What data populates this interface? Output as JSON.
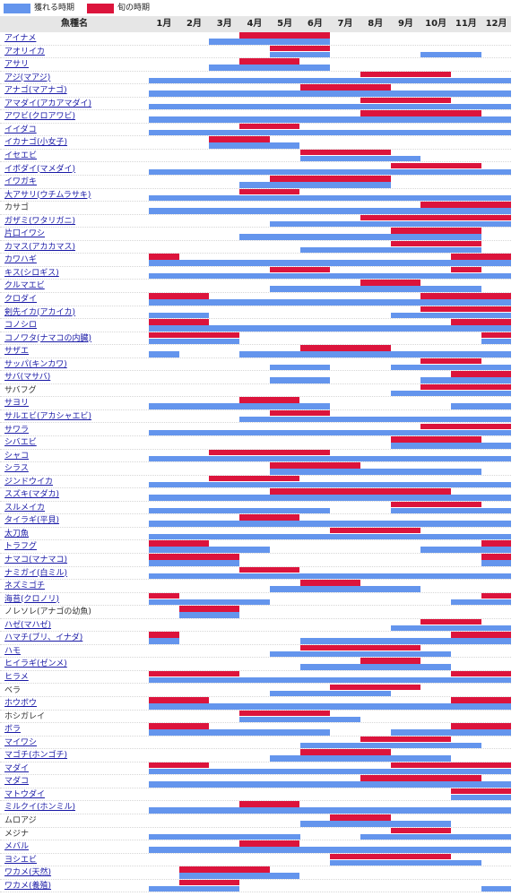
{
  "legend": {
    "catch_label": "獲れる時期",
    "season_label": "旬の時期",
    "catch_color": "#6495ED",
    "season_color": "#DC143C"
  },
  "header": {
    "fish_col": "魚種名",
    "months": [
      "1月",
      "2月",
      "3月",
      "4月",
      "5月",
      "6月",
      "7月",
      "8月",
      "9月",
      "10月",
      "11月",
      "12月"
    ]
  },
  "chart_data": {
    "type": "table",
    "description_note": "",
    "rows": [
      {
        "name": "アイナメ",
        "link": true,
        "season": [
          [
            4,
            6
          ]
        ],
        "catch": [
          [
            3,
            6
          ]
        ]
      },
      {
        "name": "アオリイカ",
        "link": true,
        "season": [
          [
            5,
            6
          ]
        ],
        "catch": [
          [
            5,
            6
          ],
          [
            10,
            11
          ]
        ]
      },
      {
        "name": "アサリ",
        "link": true,
        "season": [
          [
            4,
            5
          ]
        ],
        "catch": [
          [
            3,
            6
          ]
        ]
      },
      {
        "name": "アジ(マアジ)",
        "link": true,
        "season": [
          [
            8,
            10
          ]
        ],
        "catch": [
          [
            1,
            12
          ]
        ]
      },
      {
        "name": "アナゴ(マアナゴ)",
        "link": true,
        "season": [
          [
            6,
            8
          ]
        ],
        "catch": [
          [
            1,
            12
          ]
        ]
      },
      {
        "name": "アマダイ(アカアマダイ)",
        "link": true,
        "season": [
          [
            8,
            10
          ]
        ],
        "catch": [
          [
            1,
            12
          ]
        ]
      },
      {
        "name": "アワビ(クロアワビ)",
        "link": true,
        "season": [
          [
            8,
            11
          ]
        ],
        "catch": [
          [
            1,
            12
          ]
        ]
      },
      {
        "name": "イイダコ",
        "link": true,
        "season": [
          [
            4,
            5
          ]
        ],
        "catch": [
          [
            1,
            12
          ]
        ]
      },
      {
        "name": "イカナゴ(小女子)",
        "link": true,
        "season": [
          [
            3,
            4
          ]
        ],
        "catch": [
          [
            3,
            5
          ]
        ]
      },
      {
        "name": "イセエビ",
        "link": true,
        "season": [
          [
            6,
            8
          ]
        ],
        "catch": [
          [
            6,
            9
          ]
        ]
      },
      {
        "name": "イボダイ(マメダイ)",
        "link": true,
        "season": [
          [
            9,
            11
          ]
        ],
        "catch": [
          [
            1,
            12
          ]
        ]
      },
      {
        "name": "イワガキ",
        "link": true,
        "season": [
          [
            5,
            8
          ]
        ],
        "catch": [
          [
            4,
            8
          ]
        ]
      },
      {
        "name": "大アサリ(ウチムラサキ)",
        "link": true,
        "season": [
          [
            4,
            5
          ]
        ],
        "catch": [
          [
            1,
            12
          ]
        ]
      },
      {
        "name": "カサゴ",
        "link": false,
        "season": [
          [
            10,
            12
          ]
        ],
        "catch": [
          [
            1,
            12
          ]
        ]
      },
      {
        "name": "ガザミ(ワタリガニ)",
        "link": true,
        "season": [
          [
            8,
            12
          ]
        ],
        "catch": [
          [
            5,
            12
          ]
        ]
      },
      {
        "name": "片口イワシ",
        "link": true,
        "season": [
          [
            9,
            11
          ]
        ],
        "catch": [
          [
            4,
            11
          ]
        ]
      },
      {
        "name": "カマス(アカカマス)",
        "link": true,
        "season": [
          [
            9,
            11
          ]
        ],
        "catch": [
          [
            6,
            11
          ]
        ]
      },
      {
        "name": "カワハギ",
        "link": true,
        "season": [
          [
            1,
            1
          ],
          [
            11,
            12
          ]
        ],
        "catch": [
          [
            1,
            12
          ]
        ]
      },
      {
        "name": "キス(シロギス)",
        "link": true,
        "season": [
          [
            5,
            6
          ],
          [
            11,
            11
          ]
        ],
        "catch": [
          [
            1,
            12
          ]
        ]
      },
      {
        "name": "クルマエビ",
        "link": true,
        "season": [
          [
            8,
            9
          ]
        ],
        "catch": [
          [
            5,
            11
          ]
        ]
      },
      {
        "name": "クロダイ",
        "link": true,
        "season": [
          [
            1,
            2
          ],
          [
            10,
            12
          ]
        ],
        "catch": [
          [
            1,
            12
          ]
        ]
      },
      {
        "name": "剣先イカ(アカイカ)",
        "link": true,
        "season": [
          [
            10,
            12
          ]
        ],
        "catch": [
          [
            1,
            2
          ],
          [
            9,
            12
          ]
        ]
      },
      {
        "name": "コノシロ",
        "link": true,
        "season": [
          [
            1,
            2
          ],
          [
            11,
            12
          ]
        ],
        "catch": [
          [
            1,
            12
          ]
        ]
      },
      {
        "name": "コノワタ(ナマコの内臓)",
        "link": true,
        "season": [
          [
            1,
            3
          ],
          [
            12,
            12
          ]
        ],
        "catch": [
          [
            1,
            3
          ],
          [
            12,
            12
          ]
        ]
      },
      {
        "name": "サザエ",
        "link": true,
        "season": [
          [
            6,
            8
          ]
        ],
        "catch": [
          [
            1,
            1
          ],
          [
            4,
            12
          ]
        ]
      },
      {
        "name": "サッパ(キンカワ)",
        "link": true,
        "season": [
          [
            10,
            11
          ]
        ],
        "catch": [
          [
            5,
            6
          ],
          [
            9,
            12
          ]
        ]
      },
      {
        "name": "サバ(マサバ)",
        "link": true,
        "season": [
          [
            11,
            12
          ]
        ],
        "catch": [
          [
            5,
            6
          ],
          [
            10,
            12
          ]
        ]
      },
      {
        "name": "サバフグ",
        "link": false,
        "season": [
          [
            10,
            12
          ]
        ],
        "catch": [
          [
            9,
            12
          ]
        ]
      },
      {
        "name": "サヨリ",
        "link": true,
        "season": [
          [
            4,
            5
          ]
        ],
        "catch": [
          [
            1,
            6
          ],
          [
            11,
            12
          ]
        ]
      },
      {
        "name": "サルエビ(アカシャエビ)",
        "link": true,
        "season": [
          [
            5,
            6
          ]
        ],
        "catch": [
          [
            4,
            12
          ]
        ]
      },
      {
        "name": "サワラ",
        "link": true,
        "season": [
          [
            10,
            12
          ]
        ],
        "catch": [
          [
            1,
            12
          ]
        ]
      },
      {
        "name": "シバエビ",
        "link": true,
        "season": [
          [
            9,
            11
          ]
        ],
        "catch": [
          [
            9,
            12
          ]
        ]
      },
      {
        "name": "シャコ",
        "link": true,
        "season": [
          [
            3,
            6
          ]
        ],
        "catch": [
          [
            1,
            12
          ]
        ]
      },
      {
        "name": "シラス",
        "link": true,
        "season": [
          [
            5,
            7
          ]
        ],
        "catch": [
          [
            5,
            11
          ]
        ]
      },
      {
        "name": "ジンドウイカ",
        "link": true,
        "season": [
          [
            3,
            5
          ]
        ],
        "catch": [
          [
            1,
            12
          ]
        ]
      },
      {
        "name": "スズキ(マダカ)",
        "link": true,
        "season": [
          [
            5,
            10
          ]
        ],
        "catch": [
          [
            1,
            12
          ]
        ]
      },
      {
        "name": "スルメイカ",
        "link": true,
        "season": [
          [
            9,
            11
          ]
        ],
        "catch": [
          [
            1,
            6
          ],
          [
            9,
            12
          ]
        ]
      },
      {
        "name": "タイラギ(平貝)",
        "link": true,
        "season": [
          [
            4,
            5
          ]
        ],
        "catch": [
          [
            1,
            12
          ]
        ]
      },
      {
        "name": "太刀魚",
        "link": true,
        "season": [
          [
            7,
            9
          ]
        ],
        "catch": [
          [
            1,
            12
          ]
        ]
      },
      {
        "name": "トラフグ",
        "link": true,
        "season": [
          [
            1,
            2
          ],
          [
            12,
            12
          ]
        ],
        "catch": [
          [
            1,
            4
          ],
          [
            10,
            12
          ]
        ]
      },
      {
        "name": "ナマコ(マナマコ)",
        "link": true,
        "season": [
          [
            1,
            3
          ],
          [
            12,
            12
          ]
        ],
        "catch": [
          [
            1,
            3
          ],
          [
            12,
            12
          ]
        ]
      },
      {
        "name": "ナミガイ(白ミル)",
        "link": true,
        "season": [
          [
            4,
            5
          ]
        ],
        "catch": [
          [
            1,
            12
          ]
        ]
      },
      {
        "name": "ネズミゴチ",
        "link": true,
        "season": [
          [
            6,
            7
          ]
        ],
        "catch": [
          [
            5,
            9
          ]
        ]
      },
      {
        "name": "海苔(クロノリ)",
        "link": true,
        "season": [
          [
            1,
            1
          ],
          [
            12,
            12
          ]
        ],
        "catch": [
          [
            1,
            4
          ],
          [
            11,
            12
          ]
        ]
      },
      {
        "name": "ノレソレ(アナゴの幼魚)",
        "link": false,
        "season": [
          [
            2,
            3
          ]
        ],
        "catch": [
          [
            2,
            3
          ]
        ]
      },
      {
        "name": "ハゼ(マハゼ)",
        "link": true,
        "season": [
          [
            10,
            11
          ]
        ],
        "catch": [
          [
            9,
            12
          ]
        ]
      },
      {
        "name": "ハマチ(ブリ、イナダ)",
        "link": true,
        "season": [
          [
            1,
            1
          ],
          [
            11,
            12
          ]
        ],
        "catch": [
          [
            1,
            1
          ],
          [
            6,
            12
          ]
        ]
      },
      {
        "name": "ハモ",
        "link": true,
        "season": [
          [
            6,
            9
          ]
        ],
        "catch": [
          [
            5,
            10
          ]
        ]
      },
      {
        "name": "ヒイラギ(ゼンメ)",
        "link": true,
        "season": [
          [
            8,
            9
          ]
        ],
        "catch": [
          [
            6,
            10
          ]
        ]
      },
      {
        "name": "ヒラメ",
        "link": true,
        "season": [
          [
            1,
            3
          ],
          [
            11,
            12
          ]
        ],
        "catch": [
          [
            1,
            12
          ]
        ]
      },
      {
        "name": "ベラ",
        "link": false,
        "season": [
          [
            7,
            9
          ]
        ],
        "catch": [
          [
            5,
            8
          ]
        ]
      },
      {
        "name": "ホウボウ",
        "link": true,
        "season": [
          [
            1,
            2
          ],
          [
            11,
            12
          ]
        ],
        "catch": [
          [
            1,
            12
          ]
        ]
      },
      {
        "name": "ホシガレイ",
        "link": false,
        "season": [
          [
            4,
            6
          ]
        ],
        "catch": [
          [
            4,
            7
          ]
        ]
      },
      {
        "name": "ボラ",
        "link": true,
        "season": [
          [
            1,
            2
          ],
          [
            11,
            12
          ]
        ],
        "catch": [
          [
            1,
            6
          ],
          [
            9,
            12
          ]
        ]
      },
      {
        "name": "マイワシ",
        "link": true,
        "season": [
          [
            8,
            10
          ]
        ],
        "catch": [
          [
            6,
            11
          ]
        ]
      },
      {
        "name": "マゴチ(ホンゴチ)",
        "link": true,
        "season": [
          [
            6,
            8
          ]
        ],
        "catch": [
          [
            5,
            10
          ]
        ]
      },
      {
        "name": "マダイ",
        "link": true,
        "season": [
          [
            1,
            2
          ],
          [
            9,
            12
          ]
        ],
        "catch": [
          [
            1,
            12
          ]
        ]
      },
      {
        "name": "マダコ",
        "link": true,
        "season": [
          [
            8,
            11
          ]
        ],
        "catch": [
          [
            1,
            12
          ]
        ]
      },
      {
        "name": "マトウダイ",
        "link": true,
        "season": [
          [
            11,
            12
          ]
        ],
        "catch": [
          [
            11,
            12
          ]
        ]
      },
      {
        "name": "ミルクイ(ホンミル)",
        "link": true,
        "season": [
          [
            4,
            5
          ]
        ],
        "catch": [
          [
            1,
            3
          ],
          [
            4,
            12
          ]
        ]
      },
      {
        "name": "ムロアジ",
        "link": false,
        "season": [
          [
            7,
            8
          ]
        ],
        "catch": [
          [
            6,
            10
          ]
        ]
      },
      {
        "name": "メジナ",
        "link": false,
        "season": [
          [
            9,
            10
          ]
        ],
        "catch": [
          [
            1,
            5
          ],
          [
            8,
            12
          ]
        ]
      },
      {
        "name": "メバル",
        "link": true,
        "season": [
          [
            4,
            5
          ]
        ],
        "catch": [
          [
            1,
            12
          ]
        ]
      },
      {
        "name": "ヨシエビ",
        "link": true,
        "season": [
          [
            7,
            10
          ]
        ],
        "catch": [
          [
            7,
            11
          ]
        ]
      },
      {
        "name": "ワカメ(天然)",
        "link": true,
        "season": [
          [
            2,
            4
          ]
        ],
        "catch": [
          [
            2,
            5
          ]
        ]
      },
      {
        "name": "ワカメ(養殖)",
        "link": true,
        "season": [
          [
            2,
            3
          ]
        ],
        "catch": [
          [
            1,
            3
          ],
          [
            12,
            12
          ]
        ]
      }
    ]
  }
}
